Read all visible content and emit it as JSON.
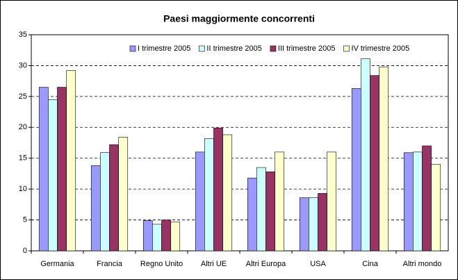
{
  "chart_data": {
    "type": "bar",
    "title": "Paesi maggiormente concorrenti",
    "categories": [
      "Germania",
      "Francia",
      "Regno Unito",
      "Altri UE",
      "Altri Europa",
      "USA",
      "Cina",
      "Altri mondo"
    ],
    "series": [
      {
        "name": "I trimestre 2005",
        "color": "#9999ff",
        "values": [
          26.5,
          13.8,
          4.9,
          16.0,
          11.8,
          8.6,
          26.3,
          15.9
        ]
      },
      {
        "name": "II trimestre 2005",
        "color": "#ccffff",
        "values": [
          24.5,
          15.9,
          4.3,
          18.2,
          13.5,
          8.6,
          31.1,
          16.0
        ]
      },
      {
        "name": "III trimestre 2005",
        "color": "#993366",
        "values": [
          26.5,
          17.2,
          5.0,
          19.9,
          12.8,
          9.3,
          28.4,
          17.0
        ]
      },
      {
        "name": "IV trimestre 2005",
        "color": "#ffffcc",
        "values": [
          29.2,
          18.4,
          4.7,
          18.8,
          16.0,
          16.0,
          29.8,
          14.0
        ]
      }
    ],
    "ylim": [
      0,
      35
    ],
    "yticks": [
      0,
      5,
      10,
      15,
      20,
      25,
      30,
      35
    ],
    "grid": true,
    "legend": "top-right"
  }
}
